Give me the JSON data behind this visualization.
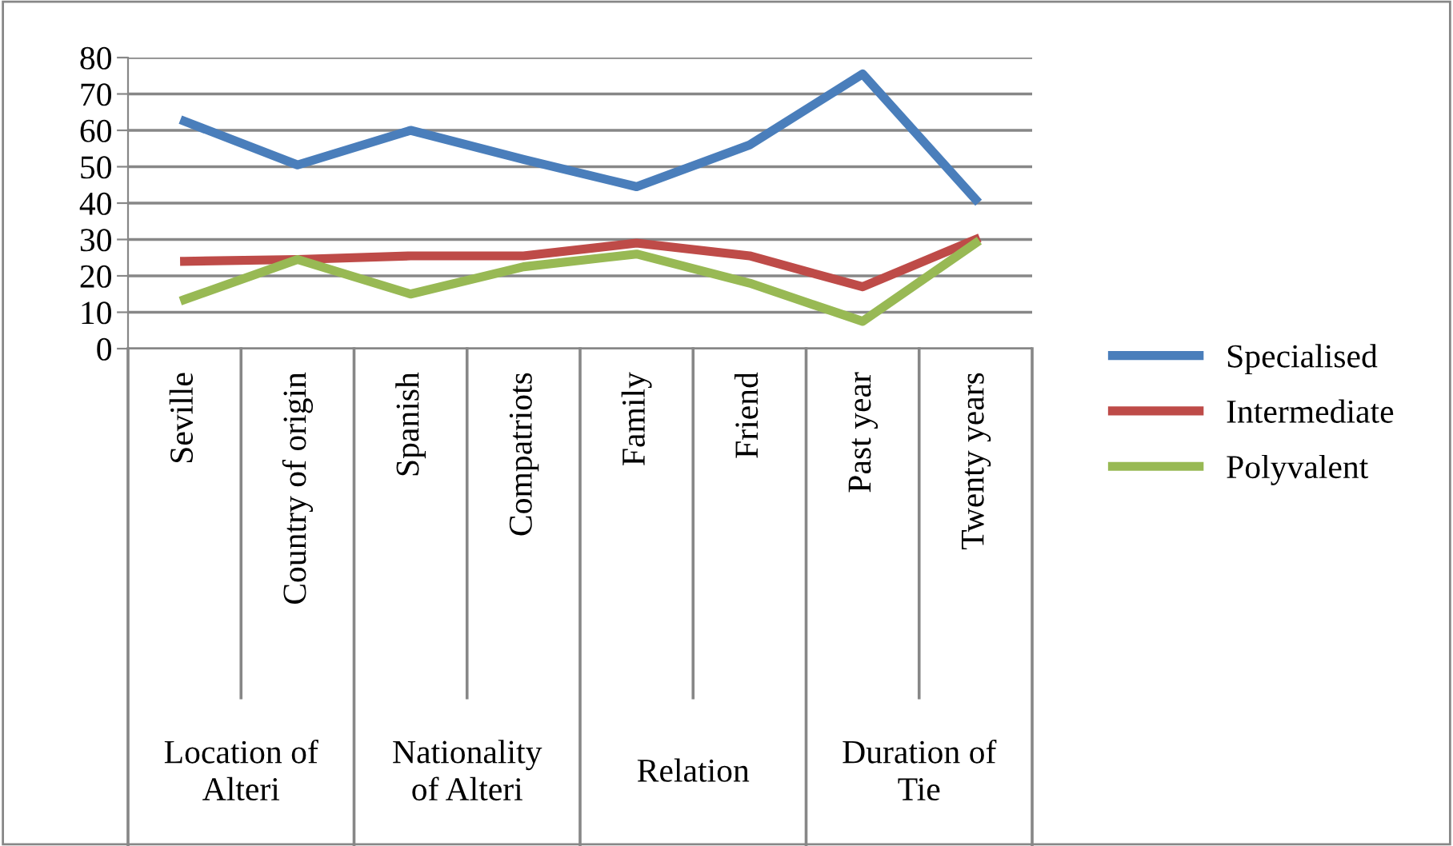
{
  "chart_data": {
    "type": "line",
    "categories": [
      "Seville",
      "Country of origin",
      "Spanish",
      "Compatriots",
      "Family",
      "Friend",
      "Past year",
      "Twenty years"
    ],
    "series": [
      {
        "name": "Specialised",
        "color": "#4a7ebb",
        "values": [
          62.5,
          50.5,
          60,
          52,
          44.5,
          56,
          75.5,
          41
        ]
      },
      {
        "name": "Intermediate",
        "color": "#be4b48",
        "values": [
          24,
          24.5,
          25.5,
          25.5,
          29,
          25.5,
          17,
          30
        ]
      },
      {
        "name": "Polyvalent",
        "color": "#98b954",
        "values": [
          13.5,
          24.5,
          15,
          22.5,
          26,
          18,
          7.5,
          29
        ]
      }
    ],
    "annotations": [
      "Location of\nAlteri",
      "Nationality\nof Alteri",
      "Relation",
      "Duration of\nTie"
    ],
    "ylim": [
      0,
      80
    ],
    "yticks": [
      0,
      10,
      20,
      30,
      40,
      50,
      60,
      70,
      80
    ],
    "grid": "y",
    "legend": "right",
    "marker": "none",
    "line_style": "solid"
  }
}
